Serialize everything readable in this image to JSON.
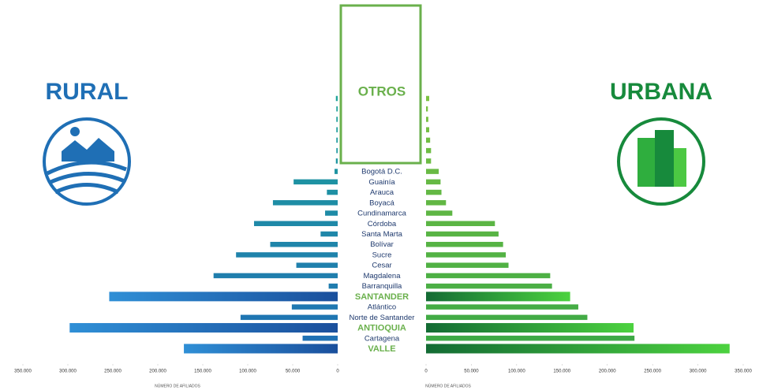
{
  "chart_data": {
    "type": "butterfly",
    "left_title": "RURAL",
    "right_title": "URBANA",
    "other_label": "OTROS",
    "left_axis_label": "NÚMERO DE AFILIADOS",
    "right_axis_label": "NÚMERO DE AFILIADOS",
    "categories": [
      null,
      null,
      null,
      null,
      null,
      null,
      null,
      "Bogotá D.C.",
      "Guainía",
      "Arauca",
      "Boyacá",
      "Cundinamarca",
      "Córdoba",
      "Santa Marta",
      "Bolívar",
      "Sucre",
      "Cesar",
      "Magdalena",
      "Barranquilla",
      "SANTANDER",
      "Atlántico",
      "Norte de Santander",
      "ANTIOQUIA",
      "Cartagena",
      "VALLE"
    ],
    "highlight": [
      19,
      22,
      24
    ],
    "label_color": "#1f3a6e",
    "highlight_label_color": "#6ab04c",
    "series": [
      {
        "name": "RURAL",
        "side": "left",
        "color": "#1ea39a",
        "color_end": "#1f6fb5",
        "highlight_color": "#1d5fb0",
        "values": [
          2000,
          1500,
          1500,
          1500,
          1500,
          1500,
          2000,
          3500,
          49000,
          12000,
          72000,
          14000,
          93000,
          19000,
          75000,
          113000,
          46000,
          138000,
          10000,
          254000,
          51000,
          108000,
          298000,
          39000,
          171000
        ]
      },
      {
        "name": "URBANA",
        "side": "right",
        "color": "#7cc243",
        "color_end": "#3aa845",
        "highlight_color": "#178a3c",
        "values": [
          3500,
          2000,
          2500,
          3500,
          4500,
          5500,
          5500,
          14000,
          16000,
          17000,
          22000,
          29000,
          76000,
          80000,
          85000,
          88000,
          91000,
          137000,
          139000,
          159000,
          168000,
          178000,
          229000,
          230000,
          335000
        ]
      }
    ],
    "xlim_left": [
      0,
      350000
    ],
    "xlim_right": [
      0,
      350000
    ],
    "xticks_left": [
      {
        "value": 350000,
        "label": "350.000"
      },
      {
        "value": 300000,
        "label": "300.000"
      },
      {
        "value": 250000,
        "label": "250.000"
      },
      {
        "value": 200000,
        "label": "200.000"
      },
      {
        "value": 150000,
        "label": "150.000"
      },
      {
        "value": 100000,
        "label": "100.000"
      },
      {
        "value": 50000,
        "label": "50.000"
      },
      0
    ],
    "xticks_right": [
      0,
      {
        "value": 50000,
        "label": "50.000"
      },
      {
        "value": 100000,
        "label": "100.000"
      },
      {
        "value": 150000,
        "label": "150.000"
      },
      {
        "value": 200000,
        "label": "200.000"
      },
      {
        "value": 250000,
        "label": "250.000"
      },
      {
        "value": 300000,
        "label": "300.000"
      },
      {
        "value": 350000,
        "label": "350.000"
      }
    ]
  }
}
